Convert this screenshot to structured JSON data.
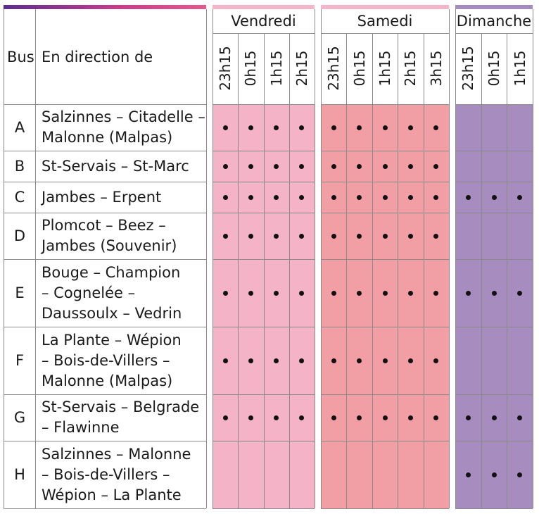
{
  "headers": {
    "bus": "Bus",
    "direction": "En direction de"
  },
  "days": [
    {
      "name": "Vendredi",
      "times": [
        "23h15",
        "0h15",
        "1h15",
        "2h15"
      ],
      "color": "#f4b3c6"
    },
    {
      "name": "Samedi",
      "times": [
        "23h15",
        "0h15",
        "1h15",
        "2h15",
        "3h15"
      ],
      "color": "#f19fa4"
    },
    {
      "name": "Dimanche",
      "times": [
        "23h15",
        "0h15",
        "1h15"
      ],
      "color": "#a68cbf"
    }
  ],
  "rows": [
    {
      "bus": "A",
      "lines": [
        "Salzinnes – Citadelle –",
        "Malonne (Malpas)"
      ],
      "service": [
        true,
        true,
        false
      ]
    },
    {
      "bus": "B",
      "lines": [
        "St-Servais – St-Marc"
      ],
      "service": [
        true,
        true,
        false
      ]
    },
    {
      "bus": "C",
      "lines": [
        "Jambes – Erpent"
      ],
      "service": [
        true,
        true,
        true
      ]
    },
    {
      "bus": "D",
      "lines": [
        "Plomcot – Beez –",
        "Jambes (Souvenir)"
      ],
      "service": [
        true,
        true,
        false
      ]
    },
    {
      "bus": "E",
      "lines": [
        "Bouge – Champion",
        "– Cognelée –",
        "Daussoulx – Vedrin"
      ],
      "service": [
        true,
        true,
        true
      ]
    },
    {
      "bus": "F",
      "lines": [
        "La Plante – Wépion",
        "– Bois-de-Villers –",
        "Malonne (Malpas)"
      ],
      "service": [
        true,
        true,
        false
      ]
    },
    {
      "bus": "G",
      "lines": [
        "St-Servais – Belgrade",
        "– Flawinne"
      ],
      "service": [
        true,
        true,
        true
      ]
    },
    {
      "bus": "H",
      "lines": [
        "Salzinnes – Malonne",
        "– Bois-de-Villers –",
        "Wépion – La Plante"
      ],
      "service": [
        false,
        false,
        true
      ]
    }
  ]
}
